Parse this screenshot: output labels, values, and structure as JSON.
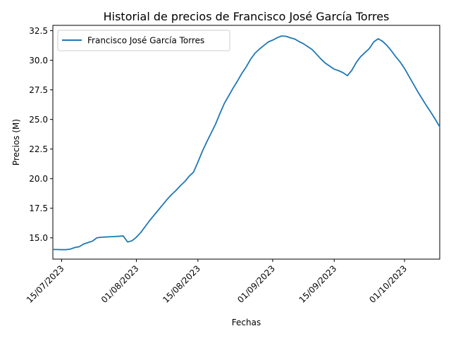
{
  "chart_data": {
    "type": "line",
    "title": "Historial de precios de Francisco José García Torres",
    "xlabel": "Fechas",
    "ylabel": "Precios (M)",
    "x_axis": {
      "type": "date",
      "range": [
        "2023-07-13",
        "2023-10-09"
      ],
      "ticks": [
        {
          "date": "2023-07-15",
          "label": "15/07/2023"
        },
        {
          "date": "2023-08-01",
          "label": "01/08/2023"
        },
        {
          "date": "2023-08-15",
          "label": "15/08/2023"
        },
        {
          "date": "2023-09-01",
          "label": "01/09/2023"
        },
        {
          "date": "2023-09-15",
          "label": "15/09/2023"
        },
        {
          "date": "2023-10-01",
          "label": "01/10/2023"
        }
      ]
    },
    "y_axis": {
      "range": [
        13.2,
        32.95
      ],
      "ticks": [
        {
          "value": 15.0,
          "label": "15.0"
        },
        {
          "value": 17.5,
          "label": "17.5"
        },
        {
          "value": 20.0,
          "label": "20.0"
        },
        {
          "value": 22.5,
          "label": "22.5"
        },
        {
          "value": 25.0,
          "label": "25.0"
        },
        {
          "value": 27.5,
          "label": "27.5"
        },
        {
          "value": 30.0,
          "label": "30.0"
        },
        {
          "value": 32.5,
          "label": "32.5"
        }
      ]
    },
    "grid": false,
    "legend": {
      "placement": "upper-left"
    },
    "series": [
      {
        "name": "Francisco José García Torres",
        "color": "#1f77b4",
        "x": [
          "2023-07-13",
          "2023-07-14",
          "2023-07-15",
          "2023-07-16",
          "2023-07-17",
          "2023-07-18",
          "2023-07-19",
          "2023-07-20",
          "2023-07-21",
          "2023-07-22",
          "2023-07-23",
          "2023-07-24",
          "2023-07-25",
          "2023-07-26",
          "2023-07-27",
          "2023-07-28",
          "2023-07-29",
          "2023-07-30",
          "2023-07-31",
          "2023-08-01",
          "2023-08-02",
          "2023-08-03",
          "2023-08-04",
          "2023-08-05",
          "2023-08-06",
          "2023-08-07",
          "2023-08-08",
          "2023-08-09",
          "2023-08-10",
          "2023-08-11",
          "2023-08-12",
          "2023-08-13",
          "2023-08-14",
          "2023-08-15",
          "2023-08-16",
          "2023-08-17",
          "2023-08-18",
          "2023-08-19",
          "2023-08-20",
          "2023-08-21",
          "2023-08-22",
          "2023-08-23",
          "2023-08-24",
          "2023-08-25",
          "2023-08-26",
          "2023-08-27",
          "2023-08-28",
          "2023-08-29",
          "2023-08-30",
          "2023-08-31",
          "2023-09-01",
          "2023-09-02",
          "2023-09-03",
          "2023-09-04",
          "2023-09-05",
          "2023-09-06",
          "2023-09-07",
          "2023-09-08",
          "2023-09-09",
          "2023-09-10",
          "2023-09-11",
          "2023-09-12",
          "2023-09-13",
          "2023-09-14",
          "2023-09-15",
          "2023-09-16",
          "2023-09-17",
          "2023-09-18",
          "2023-09-19",
          "2023-09-20",
          "2023-09-21",
          "2023-09-22",
          "2023-09-23",
          "2023-09-24",
          "2023-09-25",
          "2023-09-26",
          "2023-09-27",
          "2023-09-28",
          "2023-09-29",
          "2023-09-30",
          "2023-10-01",
          "2023-10-02",
          "2023-10-03",
          "2023-10-04",
          "2023-10-05",
          "2023-10-06",
          "2023-10-07",
          "2023-10-08",
          "2023-10-09"
        ],
        "y": [
          14.02,
          14.01,
          14.0,
          14.0,
          14.05,
          14.18,
          14.25,
          14.48,
          14.6,
          14.72,
          15.0,
          15.05,
          15.07,
          15.09,
          15.11,
          15.13,
          15.16,
          14.65,
          14.75,
          15.05,
          15.45,
          15.95,
          16.45,
          16.9,
          17.35,
          17.8,
          18.25,
          18.65,
          19.0,
          19.4,
          19.75,
          20.2,
          20.55,
          21.4,
          22.3,
          23.1,
          23.85,
          24.6,
          25.5,
          26.35,
          27.0,
          27.65,
          28.25,
          28.9,
          29.45,
          30.1,
          30.6,
          30.95,
          31.25,
          31.55,
          31.7,
          31.9,
          32.05,
          32.03,
          31.9,
          31.8,
          31.58,
          31.4,
          31.15,
          30.9,
          30.5,
          30.1,
          29.75,
          29.5,
          29.25,
          29.12,
          28.95,
          28.7,
          29.15,
          29.8,
          30.3,
          30.65,
          31.0,
          31.55,
          31.82,
          31.6,
          31.25,
          30.8,
          30.3,
          29.85,
          29.3,
          28.65,
          28.0,
          27.35,
          26.75,
          26.15,
          25.6,
          25.0,
          24.38
        ]
      }
    ]
  }
}
